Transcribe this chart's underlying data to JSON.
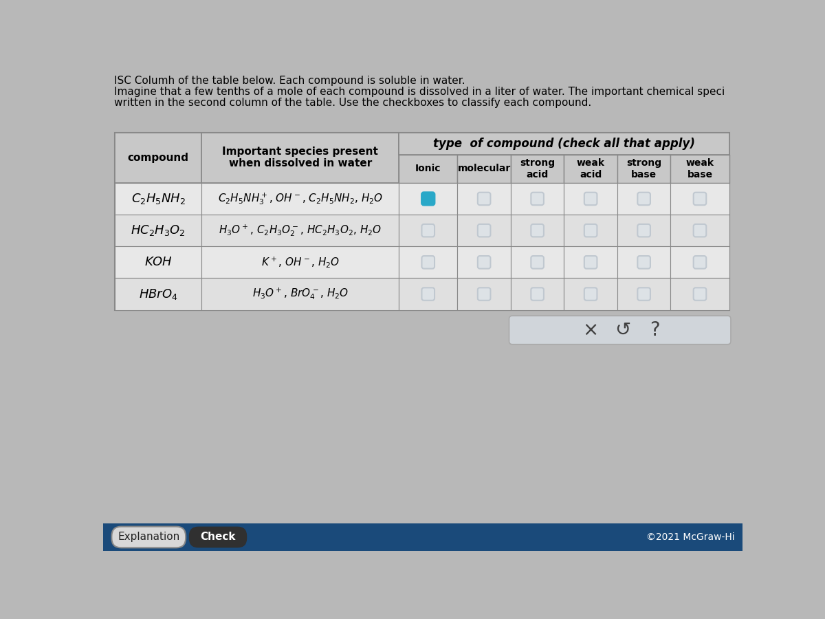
{
  "bg_color": "#b8b8b8",
  "table_outer_bg": "#c8c8c8",
  "header_bg": "#c8c8c8",
  "header_dark_bg": "#b8bfc8",
  "cell_bg_white": "#f0f0f0",
  "cell_bg_light": "#e8eaec",
  "footer_bg": "#1a4a7a",
  "top_line0": "ISC Columh of the table below. Each compound is soluble in water.",
  "top_line1": "Imagine that a few tenths of a mole of each compound is dissolved in a liter of water. The important chemical speci",
  "top_line2": "written in the second column of the table. Use the checkboxes to classify each compound.",
  "type_header": "type  of compound (check all that apply)",
  "col0_header": "compound",
  "col1_header": "Important species present\nwhen dissolved in water",
  "sub_headers": [
    "Ionic",
    "molecular",
    "strong\nacid",
    "weak\nacid",
    "strong\nbase",
    "weak\nbase"
  ],
  "compounds": [
    "$C_2H_5NH_2$",
    "$HC_2H_3O_2$",
    "$KOH$",
    "$HBrO_4$"
  ],
  "species": [
    "$C_2H_5NH_3^+$, $OH^-$, $C_2H_5NH_2$, $H_2O$",
    "$H_3O^+$, $C_2H_3O_2^-$, $HC_2H_3O_2$, $H_2O$",
    "$K^+$, $OH^-$, $H_2O$",
    "$H_3O^+$, $BrO_4^-$, $H_2O$"
  ],
  "checkbox_checked_row": 0,
  "checkbox_checked_col": 0,
  "checkbox_checked_color": "#29a8c8",
  "checkbox_unchecked_color": "#c0c8d0",
  "copyright": "©2021 McGraw-Hi",
  "btn_explanation_bg": "#d8d8d8",
  "btn_check_bg": "#303030"
}
